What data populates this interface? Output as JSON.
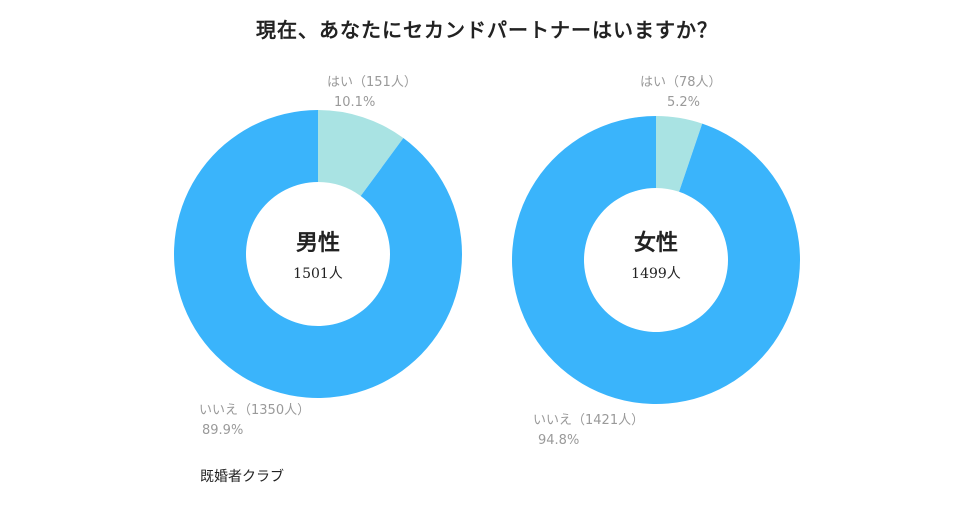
{
  "title": "現在、あなたにセカンドパートナーはいますか？",
  "source": "既婚者クラブ",
  "colors": {
    "yes": "#a9e3e3",
    "no": "#3ab4fb",
    "label": "#9a9a9a"
  },
  "chart_data": [
    {
      "type": "pie",
      "group": "男性",
      "total": "1501人",
      "slices": [
        {
          "label": "はい（151人）",
          "value": 10.1,
          "percent": "10.1%"
        },
        {
          "label": "いいえ（1350人）",
          "value": 89.9,
          "percent": "89.9%"
        }
      ]
    },
    {
      "type": "pie",
      "group": "女性",
      "total": "1499人",
      "slices": [
        {
          "label": "はい（78人）",
          "value": 5.2,
          "percent": "5.2%"
        },
        {
          "label": "いいえ（1421人）",
          "value": 94.8,
          "percent": "94.8%"
        }
      ]
    }
  ]
}
